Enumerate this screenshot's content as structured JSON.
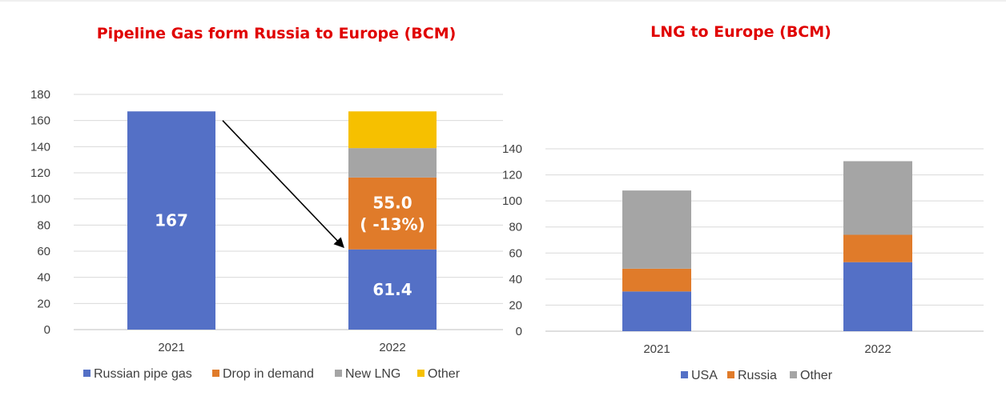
{
  "chart_data": [
    {
      "type": "bar",
      "stacked": true,
      "title": "Pipeline Gas form Russia to Europe (BCM)",
      "categories": [
        "2021",
        "2022"
      ],
      "ylim": [
        0,
        180
      ],
      "yticks": [
        0,
        20,
        40,
        60,
        80,
        100,
        120,
        140,
        160,
        180
      ],
      "grid": true,
      "legend": "bottom",
      "series": [
        {
          "name": "Russian pipe gas",
          "color": "#5470C6",
          "values": [
            167,
            61.4
          ]
        },
        {
          "name": "Drop in demand",
          "color": "#E07B2A",
          "values": [
            0,
            55.0
          ]
        },
        {
          "name": "New LNG",
          "color": "#A5A5A5",
          "values": [
            0,
            22.5
          ]
        },
        {
          "name": "Other",
          "color": "#F6C000",
          "values": [
            0,
            28.1
          ]
        }
      ],
      "data_labels": [
        {
          "category": "2021",
          "series": "Russian pipe gas",
          "lines": [
            "167"
          ]
        },
        {
          "category": "2022",
          "series": "Russian pipe gas",
          "lines": [
            "61.4"
          ]
        },
        {
          "category": "2022",
          "series": "Drop in demand",
          "lines": [
            "55.0",
            "( -13%)"
          ]
        }
      ],
      "annotations": [
        {
          "type": "arrow",
          "from": {
            "category": "2021",
            "y": 160
          },
          "to": {
            "category": "2022",
            "y": 63
          }
        }
      ]
    },
    {
      "type": "bar",
      "stacked": true,
      "title": "LNG to Europe (BCM)",
      "categories": [
        "2021",
        "2022"
      ],
      "ylim": [
        0,
        140
      ],
      "yticks": [
        0,
        20,
        40,
        60,
        80,
        100,
        120,
        140
      ],
      "grid": true,
      "legend": "bottom",
      "series": [
        {
          "name": "USA",
          "color": "#5470C6",
          "values": [
            30.5,
            53
          ]
        },
        {
          "name": "Russia",
          "color": "#E07B2A",
          "values": [
            17.5,
            21
          ]
        },
        {
          "name": "Other",
          "color": "#A5A5A5",
          "values": [
            60,
            56.5
          ]
        }
      ],
      "data_labels": [],
      "annotations": []
    }
  ]
}
